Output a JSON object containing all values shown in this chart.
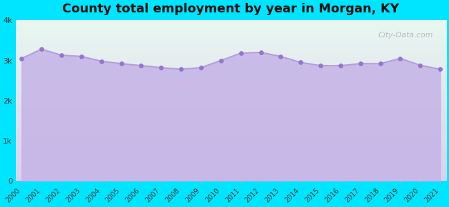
{
  "title": "County total employment by year in Morgan, KY",
  "years": [
    2000,
    2001,
    2002,
    2003,
    2004,
    2005,
    2006,
    2007,
    2008,
    2009,
    2010,
    2011,
    2012,
    2013,
    2014,
    2015,
    2016,
    2017,
    2018,
    2019,
    2020,
    2021
  ],
  "values": [
    3050,
    3280,
    3130,
    3100,
    2980,
    2920,
    2870,
    2820,
    2780,
    2820,
    3000,
    3180,
    3200,
    3100,
    2950,
    2870,
    2870,
    2920,
    2920,
    3050,
    2880,
    2780
  ],
  "ylim": [
    0,
    4000
  ],
  "yticks": [
    0,
    1000,
    2000,
    3000,
    4000
  ],
  "ytick_labels": [
    "0",
    "1k",
    "2k",
    "3k",
    "4k"
  ],
  "line_color": "#b39ddb",
  "fill_color": "#c5b3e6",
  "fill_alpha": 0.85,
  "marker_color": "#9575cd",
  "marker_size": 15,
  "bg_outer": "#00e5ff",
  "bg_grad_top": "#e8f8f0",
  "bg_grad_bottom": "#ddd0ee",
  "title_fontsize": 13,
  "tick_fontsize": 8,
  "watermark": "City-Data.com"
}
